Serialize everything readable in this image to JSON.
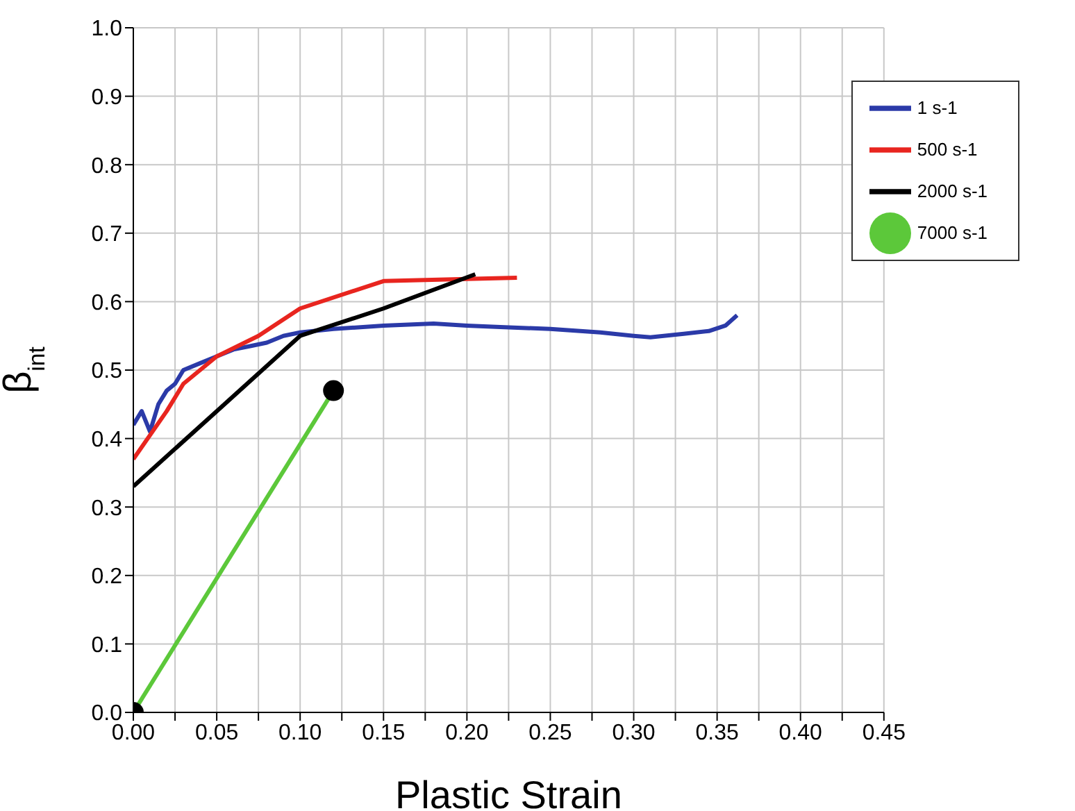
{
  "chart_data": {
    "type": "line",
    "xlabel": "Plastic Strain",
    "ylabel": "β$_{int}$",
    "xlim": [
      0,
      0.45
    ],
    "xticks": [
      {
        "value": 0,
        "label": "0.00"
      },
      {
        "value": 0.025,
        "label": null
      },
      0.05,
      {
        "value": 0.075,
        "label": null
      },
      {
        "value": 0.1,
        "label": "0.10"
      },
      {
        "value": 0.125,
        "label": null
      },
      0.15,
      {
        "value": 0.175,
        "label": null
      },
      {
        "value": 0.2,
        "label": "0.20"
      },
      {
        "value": 0.225,
        "label": null
      },
      0.25,
      {
        "value": 0.275,
        "label": null
      },
      {
        "value": 0.3,
        "label": "0.30"
      },
      {
        "value": 0.325,
        "label": null
      },
      0.35,
      {
        "value": 0.375,
        "label": null
      },
      {
        "value": 0.4,
        "label": "0.40"
      },
      {
        "value": 0.425,
        "label": null
      },
      0.45
    ],
    "ylim": [
      0,
      1
    ],
    "yticks": [
      {
        "value": 0,
        "label": "0.0"
      },
      0.1,
      0.2,
      0.3,
      0.4,
      0.5,
      0.6,
      0.7,
      0.8,
      0.9,
      {
        "value": 1,
        "label": "1.0"
      }
    ],
    "grid": true,
    "legend": "top right",
    "marker": "none",
    "line_style": "solid",
    "series": [
      {
        "name": "1 s-1",
        "color": "#2b3aa8",
        "x": [
          0,
          0.005,
          0.01,
          0.015,
          0.02,
          0.025,
          0.03,
          0.04,
          0.05,
          0.06,
          0.07,
          0.08,
          0.09,
          0.1,
          0.12,
          0.15,
          0.18,
          0.2,
          0.22,
          0.25,
          0.28,
          0.3,
          0.31,
          0.33,
          0.345,
          0.355,
          0.362
        ],
        "values": [
          0.42,
          0.44,
          0.41,
          0.45,
          0.47,
          0.48,
          0.5,
          0.51,
          0.52,
          0.53,
          0.535,
          0.54,
          0.55,
          0.555,
          0.56,
          0.565,
          0.568,
          0.565,
          0.563,
          0.56,
          0.555,
          0.55,
          0.548,
          0.553,
          0.557,
          0.565,
          0.58
        ]
      },
      {
        "name": "500 s-1",
        "color": "#e8251f",
        "x": [
          0,
          0.02,
          0.03,
          0.05,
          0.075,
          0.1,
          0.15,
          0.2,
          0.23
        ],
        "values": [
          0.37,
          0.44,
          0.48,
          0.52,
          0.55,
          0.59,
          0.63,
          0.633,
          0.635
        ]
      },
      {
        "name": "2000 s-1",
        "color": "#000000",
        "x": [
          0,
          0.05,
          0.1,
          0.15,
          0.205
        ],
        "values": [
          0.33,
          0.44,
          0.55,
          0.59,
          0.64
        ]
      },
      {
        "name": "7000 s-1",
        "color": "#5cc83a",
        "marker": "circle",
        "x": [
          0,
          0.12
        ],
        "values": [
          0,
          0.47
        ]
      }
    ]
  }
}
